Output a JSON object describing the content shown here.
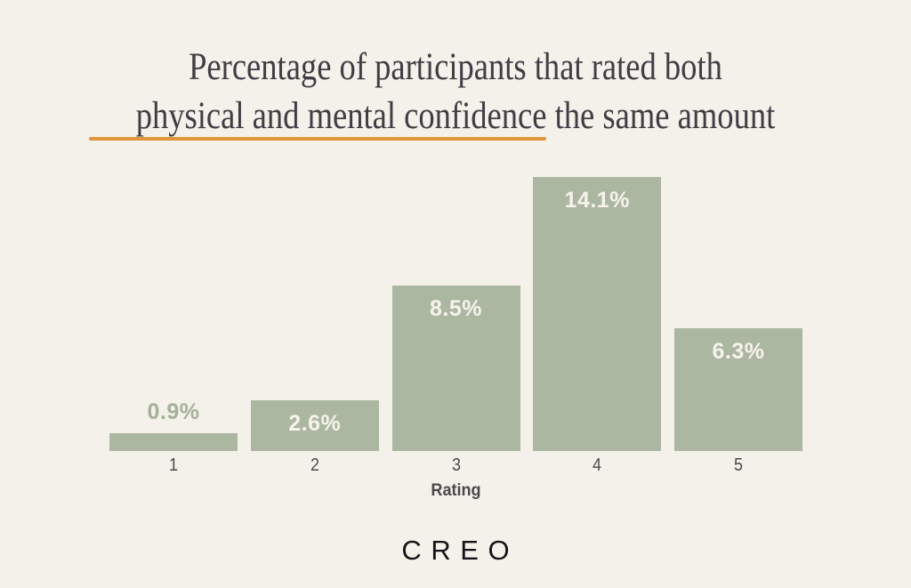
{
  "title": {
    "line1": "Percentage of participants that rated both",
    "line2": "physical and mental confidence the same amount"
  },
  "colors": {
    "background": "#f4f0ea",
    "bar": "#acb7a1",
    "bar_label_inside": "#f6f3ed",
    "bar_label_above": "#a4b198",
    "title_text": "#3e3e44",
    "underline": "#e2953b",
    "axis_text": "#4a4a4b",
    "logo_text": "#141418"
  },
  "chart_data": {
    "type": "bar",
    "title": "Percentage of participants that rated both physical and mental confidence the same amount",
    "categories": [
      "1",
      "2",
      "3",
      "4",
      "5"
    ],
    "values": [
      0.9,
      2.6,
      8.5,
      14.1,
      6.3
    ],
    "value_labels": [
      "0.9%",
      "2.6%",
      "8.5%",
      "14.1%",
      "6.3%"
    ],
    "label_placement": [
      "above",
      "inside",
      "inside",
      "inside",
      "inside"
    ],
    "xlabel": "Rating",
    "ylabel": "",
    "ylim": [
      0,
      14.1
    ],
    "grid": false,
    "legend": false,
    "bar_color": "#acb7a1"
  },
  "footer": {
    "logo": "CREO"
  }
}
